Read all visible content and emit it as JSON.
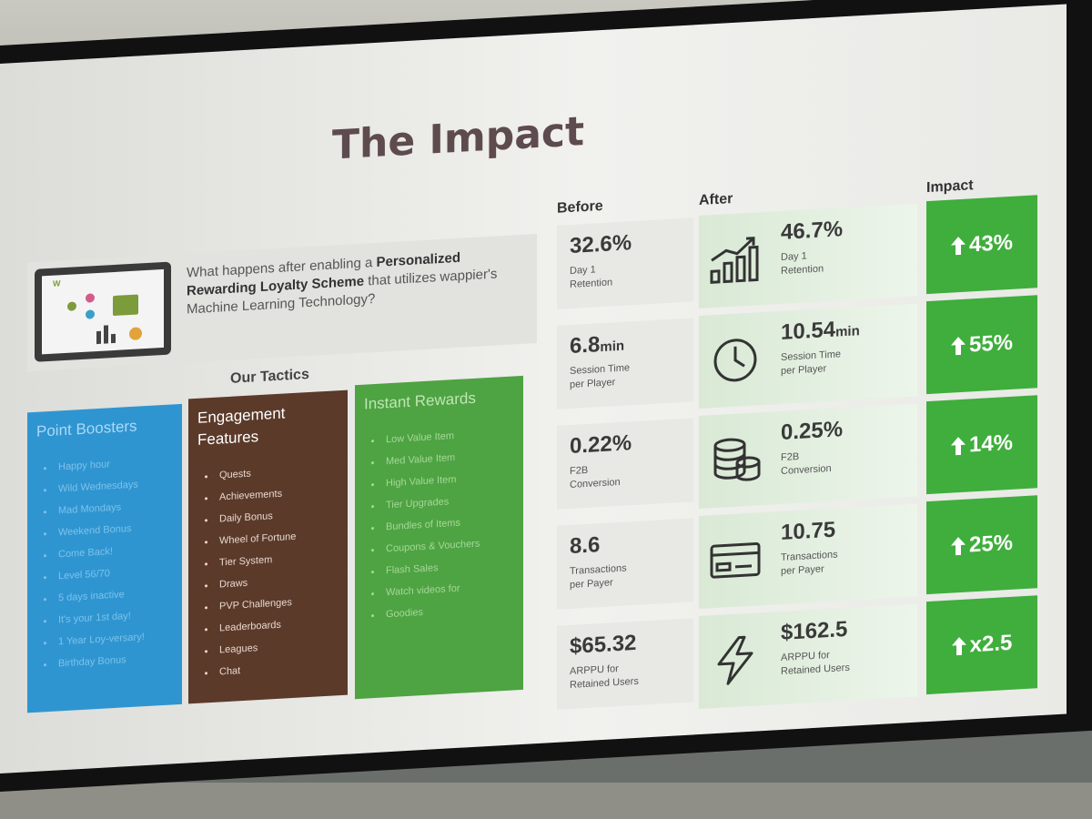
{
  "slide": {
    "title": "The Impact",
    "intro_prefix": "What happens after enabling a ",
    "intro_bold": "Personalized Rewarding Loyalty Scheme",
    "intro_suffix": " that utilizes wappier's Machine Learning Technology?",
    "laptop_logo": "W",
    "tactics_label": "Our Tactics"
  },
  "tactics": [
    {
      "title": "Point Boosters",
      "items": [
        "Happy hour",
        "Wild Wednesdays",
        "Mad Mondays",
        "Weekend Bonus",
        "Come Back!",
        "Level 56/70",
        "5 days inactive",
        "It's your 1st day!",
        "1 Year Loy-versary!",
        "Birthday Bonus"
      ]
    },
    {
      "title": "Engagement Features",
      "items": [
        "Quests",
        "Achievements",
        "Daily Bonus",
        "Wheel of Fortune",
        "Tier System",
        "Draws",
        "PVP Challenges",
        "Leaderboards",
        "Leagues",
        "Chat"
      ]
    },
    {
      "title": "Instant Rewards",
      "items": [
        "Low Value Item",
        "Med Value Item",
        "High Value Item",
        "Tier Upgrades",
        "Bundles of Items",
        "Coupons & Vouchers",
        "Flash Sales",
        "Watch videos for",
        "Goodies"
      ]
    }
  ],
  "columns": {
    "before": "Before",
    "after": "After",
    "impact": "Impact"
  },
  "metrics": [
    {
      "icon": "bar-chart-up-icon",
      "before_value": "32.6%",
      "before_unit": "",
      "before_label": "Day 1\nRetention",
      "after_value": "46.7%",
      "after_unit": "",
      "after_label": "Day 1\nRetention",
      "impact": "43%"
    },
    {
      "icon": "clock-icon",
      "before_value": "6.8",
      "before_unit": "min",
      "before_label": "Session Time\nper Player",
      "after_value": "10.54",
      "after_unit": "min",
      "after_label": "Session Time\nper Player",
      "impact": "55%"
    },
    {
      "icon": "coins-stack-icon",
      "before_value": "0.22%",
      "before_unit": "",
      "before_label": "F2B\nConversion",
      "after_value": "0.25%",
      "after_unit": "",
      "after_label": "F2B\nConversion",
      "impact": "14%"
    },
    {
      "icon": "credit-card-icon",
      "before_value": "8.6",
      "before_unit": "",
      "before_label": "Transactions\nper Payer",
      "after_value": "10.75",
      "after_unit": "",
      "after_label": "Transactions\nper Payer",
      "impact": "25%"
    },
    {
      "icon": "lightning-icon",
      "before_value": "$65.32",
      "before_unit": "",
      "before_label": "ARPPU for\nRetained Users",
      "after_value": "$162.5",
      "after_unit": "",
      "after_label": "ARPPU for\nRetained Users",
      "impact": "x2.5"
    }
  ],
  "colors": {
    "point_boosters": "#2f95d1",
    "engagement_features": "#5b3a2a",
    "instant_rewards": "#4ea342",
    "impact": "#3fae3c",
    "title": "#5e4b4e"
  }
}
